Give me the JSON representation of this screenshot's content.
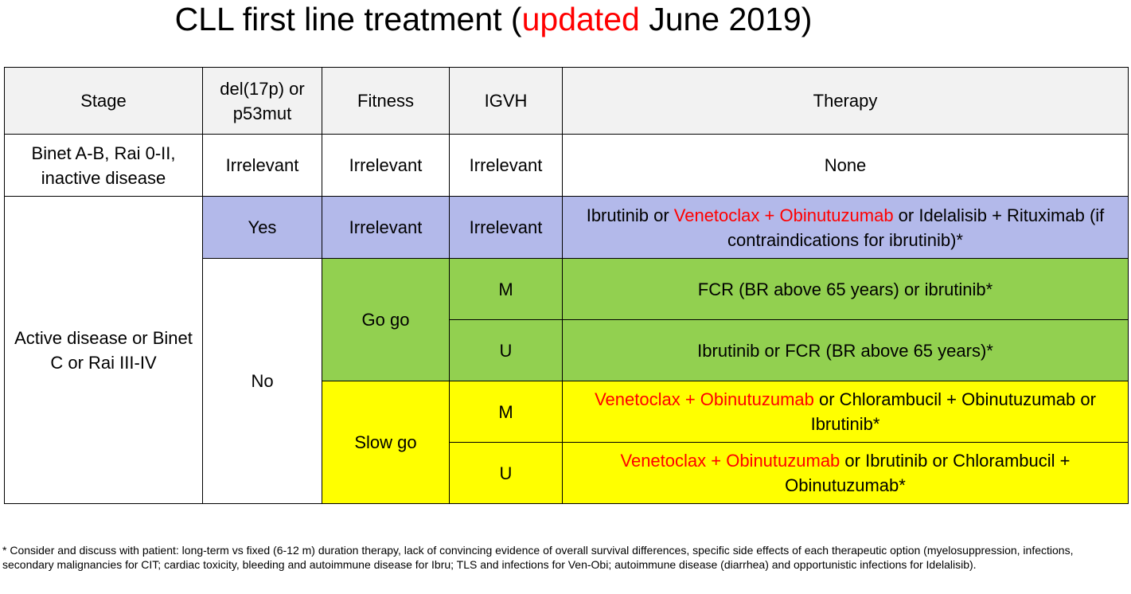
{
  "title": {
    "prefix": "CLL first line treatment (",
    "highlight": "updated",
    "suffix": " June 2019)"
  },
  "colors": {
    "highlight_text": "#ff0000",
    "header_bg": "#f2f2f2",
    "del17p_yes_bg": "#b3b9ea",
    "go_go_bg": "#92d050",
    "slow_go_bg": "#ffff00"
  },
  "table": {
    "headers": {
      "stage": "Stage",
      "del17p": "del(17p) or p53mut",
      "fitness": "Fitness",
      "igvh": "IGVH",
      "therapy": "Therapy"
    },
    "inactive": {
      "stage": "Binet A-B, Rai 0-II, inactive disease",
      "del17p": "Irrelevant",
      "fitness": "Irrelevant",
      "igvh": "Irrelevant",
      "therapy": "None"
    },
    "active": {
      "stage": "Active disease or Binet C or Rai III-IV",
      "del17p_yes": {
        "del17p": "Yes",
        "fitness": "Irrelevant",
        "igvh": "Irrelevant",
        "therapy_part1": "Ibrutinib or ",
        "therapy_highlight": "Venetoclax + Obinutuzumab",
        "therapy_part2": " or Idelalisib + Rituximab (if contraindications for ibrutinib)*"
      },
      "del17p_no": {
        "del17p": "No",
        "go_go": {
          "fitness": "Go go",
          "mutated": {
            "igvh": "M",
            "therapy": "FCR (BR above 65 years) or ibrutinib*"
          },
          "unmutated": {
            "igvh": "U",
            "therapy": "Ibrutinib or FCR (BR above 65 years)*"
          }
        },
        "slow_go": {
          "fitness": "Slow go",
          "mutated": {
            "igvh": "M",
            "therapy_highlight": "Venetoclax + Obinutuzumab",
            "therapy_rest": " or Chlorambucil + Obinutuzumab or Ibrutinib*"
          },
          "unmutated": {
            "igvh": "U",
            "therapy_highlight": "Venetoclax + Obinutuzumab",
            "therapy_rest": " or Ibrutinib or Chlorambucil + Obinutuzumab*"
          }
        }
      }
    }
  },
  "footnote": "* Consider and discuss with patient: long-term vs fixed (6-12 m) duration therapy, lack of convincing evidence of overall survival differences, specific side effects of each therapeutic option (myelosuppression, infections, secondary malignancies for CIT; cardiac toxicity, bleeding  and autoimmune disease for Ibru; TLS and infections for Ven-Obi; autoimmune disease (diarrhea) and opportunistic infections for Idelalisib)."
}
